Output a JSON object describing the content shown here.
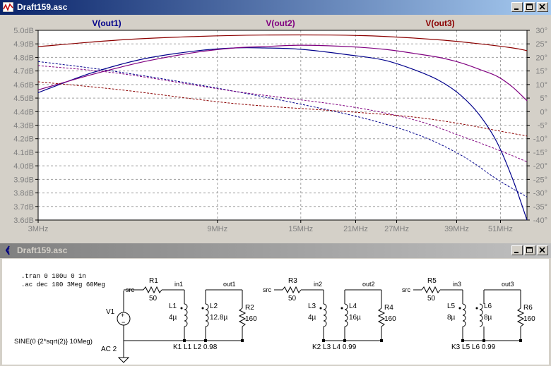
{
  "plot_window": {
    "title": "Draft159.asc",
    "buttons": {
      "minimize": "minimize",
      "maximize": "maximize",
      "close": "close"
    }
  },
  "chart_data": {
    "type": "line",
    "x_scale": "log",
    "x_ticks": [
      "3MHz",
      "9MHz",
      "15MHz",
      "21MHz",
      "27MHz",
      "39MHz",
      "51MHz"
    ],
    "x_tick_values": [
      3,
      9,
      15,
      21,
      27,
      39,
      51
    ],
    "xlim": [
      3,
      60
    ],
    "left_axis": {
      "ticks": [
        "5.0dB",
        "4.9dB",
        "4.8dB",
        "4.7dB",
        "4.6dB",
        "4.5dB",
        "4.4dB",
        "4.3dB",
        "4.2dB",
        "4.1dB",
        "4.0dB",
        "3.9dB",
        "3.8dB",
        "3.7dB",
        "3.6dB"
      ],
      "range": [
        3.6,
        5.0
      ]
    },
    "right_axis": {
      "ticks": [
        "30°",
        "25°",
        "20°",
        "15°",
        "10°",
        "5°",
        "0°",
        "-5°",
        "-10°",
        "-15°",
        "-20°",
        "-25°",
        "-30°",
        "-35°",
        "-40°"
      ],
      "range": [
        -40,
        30
      ]
    },
    "grid": true,
    "series": [
      {
        "name": "V(out1)",
        "color": "#00008b",
        "magnitude": {
          "x": [
            3,
            4,
            5,
            6,
            8,
            10,
            12,
            15,
            20,
            25,
            30,
            35,
            40,
            45,
            50,
            55,
            60
          ],
          "y": [
            4.54,
            4.67,
            4.75,
            4.8,
            4.85,
            4.87,
            4.87,
            4.86,
            4.82,
            4.78,
            4.71,
            4.63,
            4.52,
            4.37,
            4.17,
            3.9,
            3.6
          ]
        },
        "phase": {
          "x": [
            3,
            5,
            10,
            20,
            30,
            40,
            50,
            60
          ],
          "y": [
            18.5,
            14.5,
            7.5,
            -1,
            -8,
            -16,
            -25,
            -31.5
          ]
        }
      },
      {
        "name": "V(out2)",
        "color": "#800080",
        "magnitude": {
          "x": [
            3,
            4,
            5,
            6,
            8,
            10,
            12,
            15,
            20,
            25,
            30,
            35,
            40,
            45,
            50,
            55,
            60
          ],
          "y": [
            4.56,
            4.66,
            4.73,
            4.78,
            4.84,
            4.87,
            4.88,
            4.89,
            4.88,
            4.86,
            4.83,
            4.8,
            4.76,
            4.71,
            4.66,
            4.58,
            4.48
          ]
        },
        "phase": {
          "x": [
            3,
            5,
            10,
            20,
            30,
            40,
            50,
            60
          ],
          "y": [
            17,
            14,
            7.5,
            2,
            -3,
            -9,
            -14,
            -18.5
          ]
        }
      },
      {
        "name": "V(out3)",
        "color": "#8b0000",
        "magnitude": {
          "x": [
            3,
            5,
            8,
            12,
            18,
            25,
            35,
            45,
            55,
            60
          ],
          "y": [
            4.88,
            4.93,
            4.955,
            4.965,
            4.965,
            4.955,
            4.93,
            4.9,
            4.87,
            4.85
          ]
        },
        "phase": {
          "x": [
            3,
            5,
            10,
            20,
            30,
            40,
            50,
            60
          ],
          "y": [
            11,
            8,
            3,
            0,
            -2,
            -4.5,
            -7,
            -9
          ]
        }
      }
    ]
  },
  "schematic_window": {
    "title": "Draft159.asc",
    "directives": [
      ".tran 0 100u 0 1n",
      ".ac dec 100 3Meg 60Meg"
    ],
    "source": {
      "name": "V1",
      "value": "SINE(0 {2*sqrt(2)} 10Meg)",
      "ac": "AC 2"
    },
    "nets": {
      "src": "src",
      "in1": "in1",
      "in2": "in2",
      "in3": "in3",
      "out1": "out1",
      "out2": "out2",
      "out3": "out3"
    },
    "stages": [
      {
        "R_in": "R1",
        "R_in_val": "50",
        "La": "L1",
        "La_val": "4µ",
        "Lb": "L2",
        "Lb_val": "12.8µ",
        "R_out": "R2",
        "R_out_val": "160",
        "coupling": "K1 L1 L2 0.98"
      },
      {
        "R_in": "R3",
        "R_in_val": "50",
        "La": "L3",
        "La_val": "4µ",
        "Lb": "L4",
        "Lb_val": "16µ",
        "R_out": "R4",
        "R_out_val": "160",
        "coupling": "K2 L3 L4 0.99"
      },
      {
        "R_in": "R5",
        "R_in_val": "50",
        "La": "L5",
        "La_val": "8µ",
        "Lb": "L6",
        "Lb_val": "8µ",
        "R_out": "R6",
        "R_out_val": "160",
        "coupling": "K3 L5 L6 0.99"
      }
    ]
  }
}
